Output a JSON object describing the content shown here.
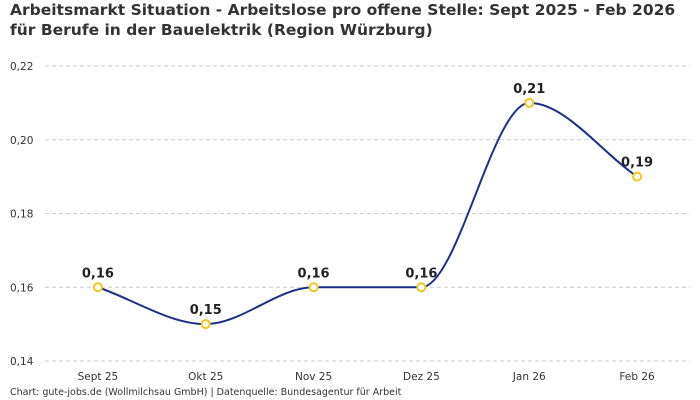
{
  "chart_data": {
    "type": "line",
    "title": "Arbeitsmarkt Situation - Arbeitslose pro offene Stelle: Sept 2025 - Feb 2026 für Berufe in der Bauelektrik (Region Würzburg)",
    "categories": [
      "Sept 25",
      "Okt 25",
      "Nov 25",
      "Dez 25",
      "Jan 26",
      "Feb 26"
    ],
    "values": [
      0.16,
      0.15,
      0.16,
      0.16,
      0.21,
      0.19
    ],
    "data_labels": [
      "0,16",
      "0,15",
      "0,16",
      "0,16",
      "0,21",
      "0,19"
    ],
    "ylim": [
      0.14,
      0.22
    ],
    "yticks": [
      0.14,
      0.16,
      0.18,
      0.2,
      0.22
    ],
    "ytick_labels": [
      "0,14",
      "0,16",
      "0,18",
      "0,20",
      "0,22"
    ],
    "xlabel": "",
    "ylabel": "",
    "grid": "horizontal dashed",
    "line_color": "#1a2f8f",
    "marker_color": "#f5c518",
    "interpolation": "smooth monotone"
  },
  "footer": "Chart: gute-jobs.de (Wollmilchsau GmbH) | Datenquelle: Bundesagentur für Arbeit"
}
